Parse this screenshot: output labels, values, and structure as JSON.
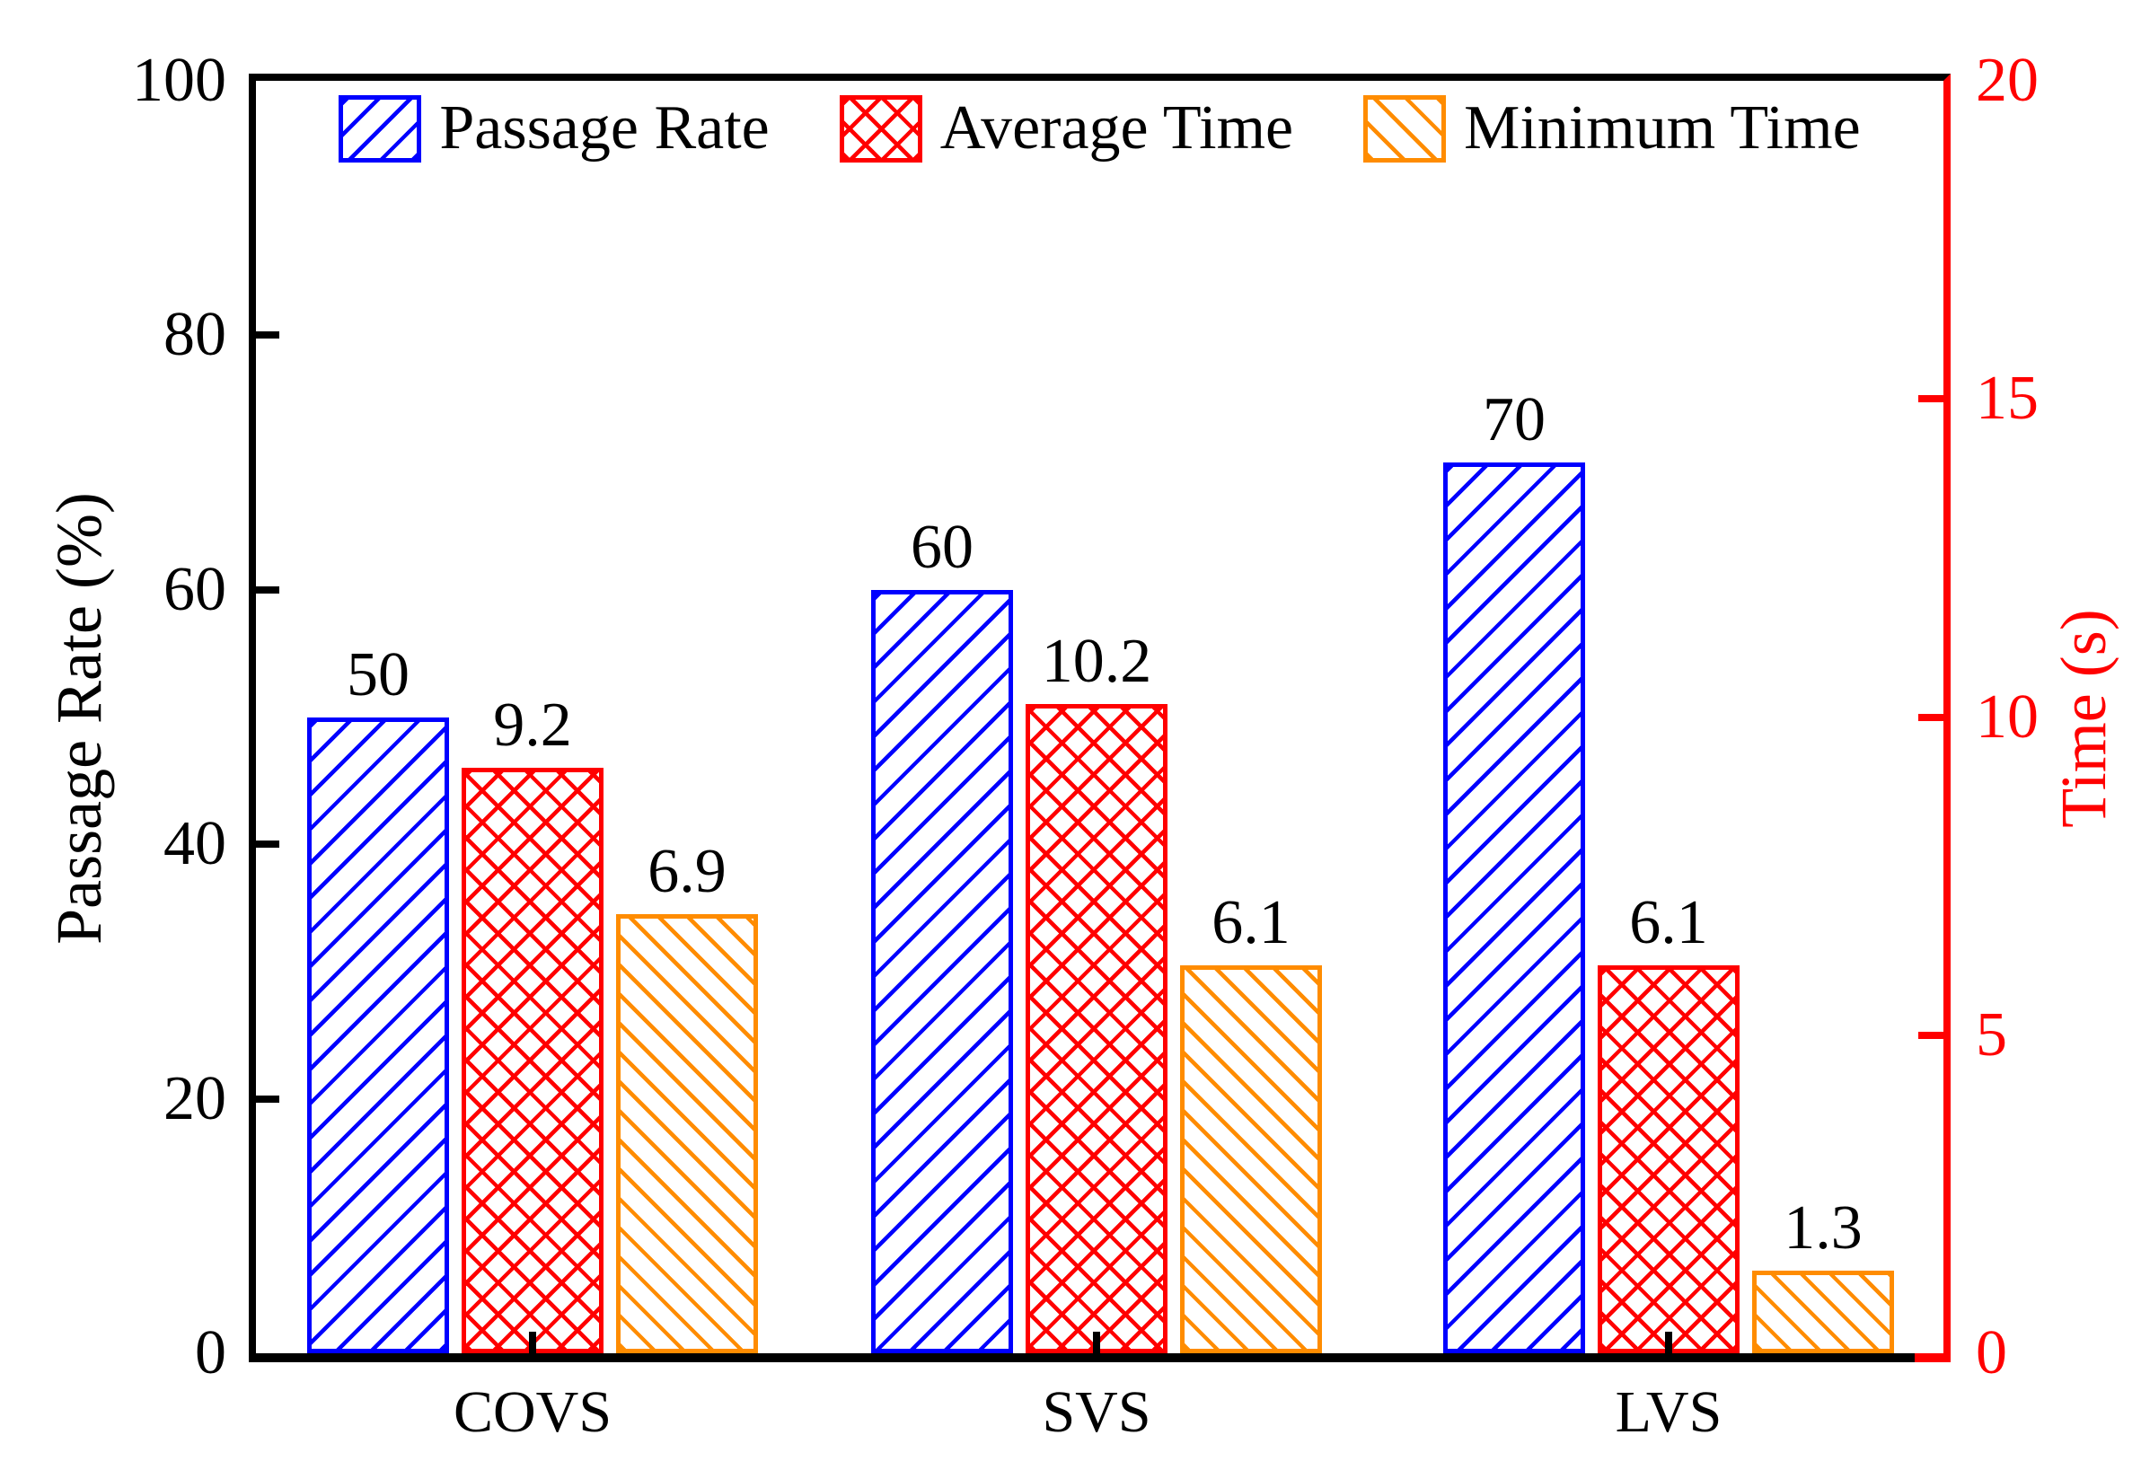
{
  "chart_data": {
    "type": "bar",
    "categories": [
      "COVS",
      "SVS",
      "LVS"
    ],
    "series": [
      {
        "name": "Passage Rate",
        "axis": "left",
        "color": "#0000FF",
        "hatch": "/",
        "values": [
          50,
          60,
          70
        ]
      },
      {
        "name": "Average Time",
        "axis": "right",
        "color": "#FF0000",
        "hatch": "x",
        "values": [
          9.2,
          10.2,
          6.1
        ]
      },
      {
        "name": "Minimum Time",
        "axis": "right",
        "color": "#FF8C00",
        "hatch": "\\",
        "values": [
          6.9,
          6.1,
          1.3
        ]
      }
    ],
    "left_axis": {
      "label": "Passage Rate (%)",
      "range": [
        0,
        100
      ],
      "ticks": [
        0,
        20,
        40,
        60,
        80,
        100
      ],
      "color": "#000000"
    },
    "right_axis": {
      "label": "Time (s)",
      "range": [
        0,
        20
      ],
      "ticks": [
        0,
        5,
        10,
        15,
        20
      ],
      "color": "#FF0000"
    },
    "bar_value_labels": [
      "50",
      "9.2",
      "6.9",
      "60",
      "10.2",
      "6.1",
      "70",
      "6.1",
      "1.3"
    ],
    "legend": {
      "position": "top-center",
      "entries": [
        "Passage Rate",
        "Average Time",
        "Minimum Time"
      ]
    },
    "grid": "off",
    "background": "#FFFFFF"
  }
}
